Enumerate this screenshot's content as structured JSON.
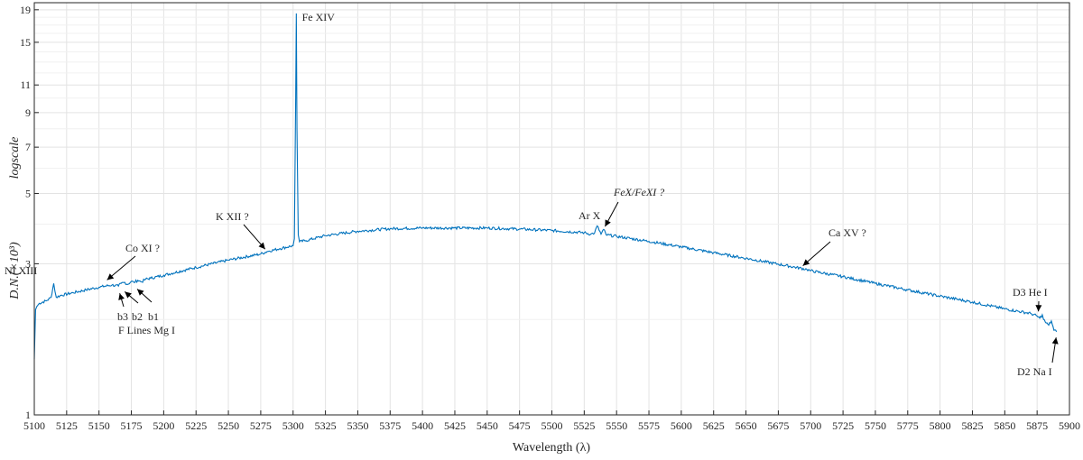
{
  "chart_data": {
    "type": "line",
    "xlabel": "Wavelength (λ)",
    "ylabel": "D.N.(×10³)",
    "ylabel_side": "logscale",
    "xlim": [
      5100,
      5900
    ],
    "ylim": [
      1,
      20
    ],
    "yscale": "log",
    "grid": true,
    "xticks": [
      5100,
      5125,
      5150,
      5175,
      5200,
      5225,
      5250,
      5275,
      5300,
      5325,
      5350,
      5375,
      5400,
      5425,
      5450,
      5475,
      5500,
      5525,
      5550,
      5575,
      5600,
      5625,
      5650,
      5675,
      5700,
      5725,
      5750,
      5775,
      5800,
      5825,
      5850,
      5875,
      5900
    ],
    "yticks": [
      1,
      3,
      5,
      7,
      9,
      11,
      15,
      19
    ],
    "line_color": "#0072bd",
    "series": [
      {
        "x": [
          5100,
          5101,
          5102,
          5104,
          5110,
          5113,
          5115,
          5116,
          5117,
          5120,
          5130,
          5140,
          5150,
          5160,
          5165,
          5167,
          5170,
          5172,
          5175,
          5177,
          5180,
          5183,
          5186,
          5190,
          5200,
          5225,
          5250,
          5275,
          5280,
          5290,
          5300,
          5301,
          5302,
          5302.5,
          5303,
          5304,
          5305,
          5310,
          5325,
          5350,
          5375,
          5400,
          5425,
          5450,
          5475,
          5500,
          5525,
          5530,
          5533,
          5535,
          5538,
          5540,
          5542,
          5550,
          5575,
          5600,
          5625,
          5650,
          5675,
          5697,
          5700,
          5725,
          5750,
          5775,
          5800,
          5825,
          5850,
          5870,
          5875,
          5877,
          5879,
          5880,
          5882,
          5884,
          5886,
          5888,
          5890
        ],
        "y": [
          1.5,
          2.15,
          2.2,
          2.25,
          2.3,
          2.35,
          2.6,
          2.45,
          2.35,
          2.38,
          2.43,
          2.48,
          2.53,
          2.57,
          2.55,
          2.6,
          2.62,
          2.58,
          2.64,
          2.62,
          2.66,
          2.63,
          2.68,
          2.7,
          2.76,
          2.92,
          3.08,
          3.22,
          3.28,
          3.35,
          3.42,
          3.6,
          10.0,
          18.5,
          8.0,
          3.7,
          3.52,
          3.55,
          3.68,
          3.8,
          3.87,
          3.89,
          3.89,
          3.89,
          3.86,
          3.82,
          3.76,
          3.72,
          3.75,
          3.95,
          3.72,
          3.85,
          3.7,
          3.66,
          3.53,
          3.39,
          3.25,
          3.12,
          2.99,
          2.88,
          2.85,
          2.73,
          2.6,
          2.48,
          2.37,
          2.27,
          2.16,
          2.09,
          2.05,
          2.02,
          2.07,
          2.0,
          1.95,
          1.92,
          1.98,
          1.85,
          1.83
        ]
      }
    ],
    "annotations": [
      {
        "text": "Fe XIV",
        "x": 5302,
        "y": 18.5
      },
      {
        "text": "NI XIII",
        "x": 5116,
        "y": 2.6
      },
      {
        "text": "Co XI ?",
        "x": 5166,
        "y": 2.58
      },
      {
        "text": "b3",
        "x": 5166,
        "y": 2.55
      },
      {
        "text": "b2",
        "x": 5172,
        "y": 2.58
      },
      {
        "text": "b1",
        "x": 5183,
        "y": 2.63
      },
      {
        "text": "F Lines Mg I",
        "x": 5175,
        "y": 2.5
      },
      {
        "text": "K XII ?",
        "x": 5277,
        "y": 3.25
      },
      {
        "text": "Ar X",
        "x": 5533,
        "y": 3.8
      },
      {
        "text": "FeX/FeXI ?",
        "x": 5539,
        "y": 3.78
      },
      {
        "text": "Ca XV ?",
        "x": 5694,
        "y": 2.88
      },
      {
        "text": "D3 He I",
        "x": 5876,
        "y": 2.04
      },
      {
        "text": "D2 Na I",
        "x": 5889,
        "y": 1.85
      }
    ]
  }
}
